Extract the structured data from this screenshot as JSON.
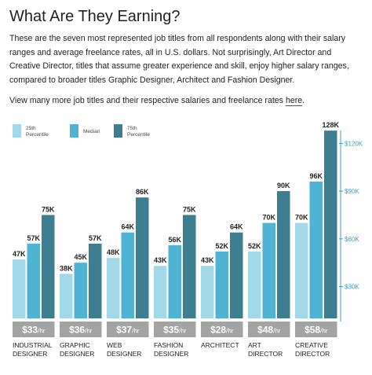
{
  "heading": "What Are They Earning?",
  "description": "These are the seven most represented job titles from all respondents along with their salary ranges and average freelance rates, all in U.S. dollars. Not surprisingly, Art Director and Creative Director, titles that assume greater experience and skill, enjoy higher salary ranges, compared to broader titles Graphic Designer, Architect and Fashion Designer.",
  "view_more": {
    "prefix": "View many more job titles and their respective salaries and freelance rates ",
    "link": "here",
    "suffix": "."
  },
  "colors": {
    "p25": "#a3d8e8",
    "median": "#4fb3d4",
    "p75": "#3d7e90",
    "rate_box": "#a3a3a3",
    "axis": "#3a9dbd"
  },
  "chart_data": {
    "type": "bar",
    "categories": [
      [
        "INDUSTRIAL",
        "DESIGNER"
      ],
      [
        "GRAPHIC",
        "DESIGNER"
      ],
      [
        "WEB",
        "DESIGNER"
      ],
      [
        "FASHION",
        "DESIGNER"
      ],
      [
        "ARCHITECT"
      ],
      [
        "ART",
        "DIRECTOR"
      ],
      [
        "CREATIVE",
        "DIRECTOR"
      ]
    ],
    "series": [
      {
        "name": "25th Percentile",
        "legend": [
          "25th",
          "Percentile"
        ],
        "values": [
          47,
          38,
          48,
          43,
          43,
          52,
          70
        ]
      },
      {
        "name": "Median",
        "legend": [
          "Median"
        ],
        "values": [
          57,
          45,
          64,
          56,
          52,
          70,
          96
        ]
      },
      {
        "name": "75th Percentile",
        "legend": [
          "75th",
          "Percentile"
        ],
        "values": [
          75,
          57,
          86,
          75,
          64,
          90,
          128
        ]
      }
    ],
    "value_labels": [
      [
        "47K",
        "57K",
        "75K"
      ],
      [
        "38K",
        "45K",
        "57K"
      ],
      [
        "48K",
        "64K",
        "86K"
      ],
      [
        "43K",
        "56K",
        "75K"
      ],
      [
        "43K",
        "52K",
        "64K"
      ],
      [
        "52K",
        "70K",
        "90K"
      ],
      [
        "70K",
        "96K",
        "128K"
      ]
    ],
    "hourly_rates": [
      {
        "amount": "$33",
        "unit": "/hr"
      },
      {
        "amount": "$36",
        "unit": "/hr"
      },
      {
        "amount": "$37",
        "unit": "/hr"
      },
      {
        "amount": "$35",
        "unit": "/hr"
      },
      {
        "amount": "$28",
        "unit": "/hr"
      },
      {
        "amount": "$48",
        "unit": "/hr"
      },
      {
        "amount": "$58",
        "unit": "/hr"
      }
    ],
    "y_axis": {
      "ticks": [
        30,
        60,
        90,
        120
      ],
      "tick_labels": [
        "$30K",
        "$60K",
        "$90K",
        "$120K"
      ],
      "ylim": [
        10,
        135
      ],
      "position": "right"
    },
    "legend": "top-left",
    "grid": false
  }
}
